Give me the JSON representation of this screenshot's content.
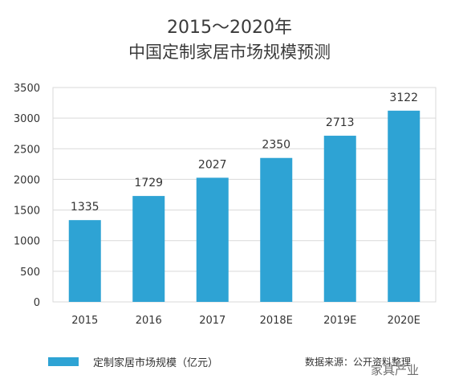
{
  "chart_data": {
    "type": "bar",
    "title": "2015～2020年",
    "subtitle": "中国定制家居市场规模预测",
    "categories": [
      "2015",
      "2016",
      "2017",
      "2018E",
      "2019E",
      "2020E"
    ],
    "series": [
      {
        "name": "定制家居市场规模（亿元）",
        "values": [
          1335,
          1729,
          2027,
          2350,
          2713,
          3122
        ]
      }
    ],
    "data_labels": [
      "1335",
      "1729",
      "2027",
      "2350",
      "2713",
      "3122"
    ],
    "y_ticks": [
      0,
      500,
      1000,
      1500,
      2000,
      2500,
      3000,
      3500
    ],
    "ylim": [
      0,
      3500
    ],
    "grid": true,
    "bar_color": "#2ea3d4",
    "legend_position": "bottom-left"
  },
  "source_note": "数据来源：公开资料整理",
  "watermark": "家具产业"
}
